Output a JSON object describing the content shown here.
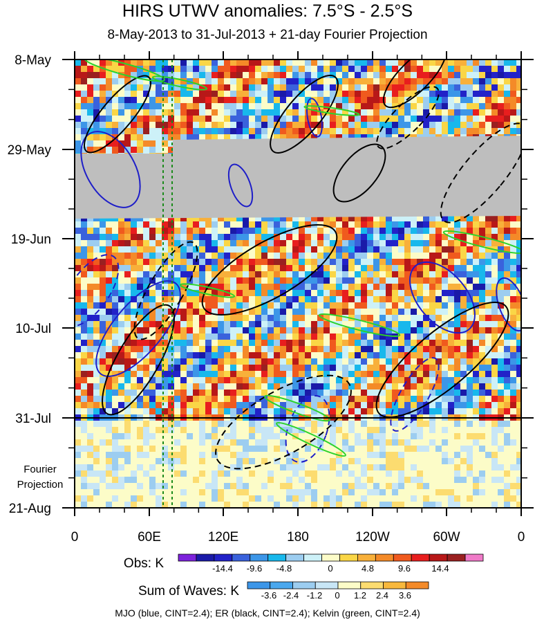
{
  "chart_data": {
    "type": "heatmap",
    "title": "HIRS UTWV anomalies: 7.5°S - 2.5°S",
    "subtitle": "8-May-2013 to 31-Jul-2013 + 21-day Fourier Projection",
    "x_tick_labels": [
      "0",
      "60E",
      "120E",
      "180",
      "120W",
      "60W",
      "0"
    ],
    "y_tick_labels": [
      "8-May",
      "29-May",
      "19-Jun",
      "10-Jul",
      "31-Jul",
      "21-Aug"
    ],
    "projection_label": "Fourier\nProjection",
    "obs_colorbar": {
      "label": "Obs: K",
      "tick_labels": [
        "-14.4",
        "-9.6",
        "-4.8",
        "0",
        "4.8",
        "9.6",
        "14.4"
      ],
      "colors": [
        "#7d22dc",
        "#1a1aa8",
        "#2222c8",
        "#3a62dc",
        "#3c96e8",
        "#18b8ec",
        "#9ccdf0",
        "#cdf1f8",
        "#fcfcc8",
        "#fad646",
        "#f8b03a",
        "#f48a28",
        "#f05a1e",
        "#e81e1e",
        "#b81818",
        "#9a2020",
        "#f07ac8"
      ]
    },
    "waves_colorbar": {
      "label": "Sum of Waves: K",
      "tick_labels": [
        "-3.6",
        "-2.4",
        "-1.2",
        "0",
        "1.2",
        "2.4",
        "3.6"
      ],
      "colors": [
        "#3c96e8",
        "#4aa8ee",
        "#9ccdf0",
        "#c8e6f6",
        "#fcfcc8",
        "#fcdc70",
        "#f8b83c",
        "#f48a28"
      ]
    },
    "missing_band_color": "#bebebe",
    "contours": [
      {
        "name": "MJO",
        "color": "#1e1ec8"
      },
      {
        "name": "ER",
        "color": "#000000"
      },
      {
        "name": "Kelvin",
        "color": "#2cd22c"
      }
    ],
    "grid": false
  },
  "footer": "MJO (blue, CINT=2.4); ER (black, CINT=2.4); Kelvin (green, CINT=2.4)"
}
